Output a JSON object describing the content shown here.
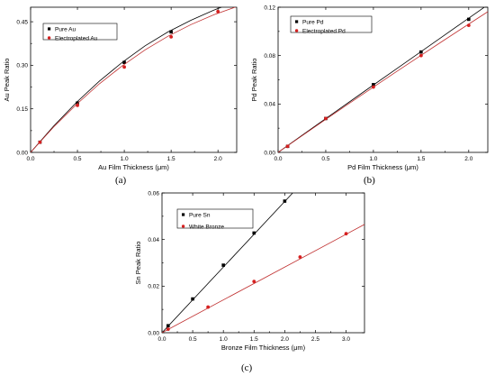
{
  "chart_data": [
    {
      "type": "scatter",
      "panel_label": "(a)",
      "xlabel": "Au Film Thickness (μm)",
      "ylabel": "Au Peak Ratio",
      "xlim": [
        0,
        2.2
      ],
      "ylim": [
        0,
        0.5
      ],
      "xticks": [
        0.0,
        0.5,
        1.0,
        1.5,
        2.0
      ],
      "xtick_labels": [
        "0.0",
        "0.5",
        "1.0",
        "1.5",
        "2.0"
      ],
      "yticks": [
        0.0,
        0.15,
        0.3,
        0.45
      ],
      "ytick_labels": [
        "0.00",
        "0.15",
        "0.30",
        "0.45"
      ],
      "legend_position": "top-left",
      "series": [
        {
          "name": "Pure Au",
          "color": "#000000",
          "x": [
            0.1,
            0.5,
            1.0,
            1.5,
            2.0
          ],
          "y": [
            0.035,
            0.17,
            0.31,
            0.415,
            0.505
          ],
          "fit_y": [
            0.0,
            0.09,
            0.172,
            0.245,
            0.31,
            0.367,
            0.415,
            0.455,
            0.49,
            0.52
          ]
        },
        {
          "name": "Electroplated Au",
          "color": "#d62020",
          "x": [
            0.1,
            0.5,
            1.0,
            1.5,
            2.0
          ],
          "y": [
            0.035,
            0.162,
            0.294,
            0.398,
            0.485
          ],
          "fit_y": [
            0.0,
            0.087,
            0.165,
            0.236,
            0.298,
            0.353,
            0.4,
            0.44,
            0.474,
            0.502
          ]
        }
      ]
    },
    {
      "type": "scatter",
      "panel_label": "(b)",
      "xlabel": "Pd Film Thickness (μm)",
      "ylabel": "Pd Peak Ratio",
      "xlim": [
        0,
        2.2
      ],
      "ylim": [
        0,
        0.12
      ],
      "xticks": [
        0.0,
        0.5,
        1.0,
        1.5,
        2.0
      ],
      "xtick_labels": [
        "0.0",
        "0.5",
        "1.0",
        "1.5",
        "2.0"
      ],
      "yticks": [
        0.0,
        0.04,
        0.08,
        0.12
      ],
      "ytick_labels": [
        "0.00",
        "0.04",
        "0.08",
        "0.12"
      ],
      "legend_position": "top-left",
      "series": [
        {
          "name": "Pure Pd",
          "color": "#000000",
          "x": [
            0.1,
            0.5,
            1.0,
            1.5,
            2.0
          ],
          "y": [
            0.005,
            0.028,
            0.056,
            0.083,
            0.11
          ],
          "fit_y": [
            0.0,
            0.0137,
            0.0273,
            0.0409,
            0.0545,
            0.068,
            0.0815,
            0.095,
            0.1085,
            0.122
          ]
        },
        {
          "name": "Electroplated Pd",
          "color": "#d62020",
          "x": [
            0.1,
            0.5,
            1.0,
            1.5,
            2.0
          ],
          "y": [
            0.005,
            0.028,
            0.054,
            0.08,
            0.105
          ],
          "fit_y": [
            0.0,
            0.0134,
            0.0267,
            0.0398,
            0.0528,
            0.0657,
            0.0785,
            0.0912,
            0.1038,
            0.1163
          ]
        }
      ]
    },
    {
      "type": "scatter",
      "panel_label": "(c)",
      "xlabel": "Bronze Film Thickness (μm)",
      "ylabel": "Sn Peak Ratio",
      "xlim": [
        0,
        3.3
      ],
      "ylim": [
        0,
        0.06
      ],
      "xticks": [
        0.0,
        0.5,
        1.0,
        1.5,
        2.0,
        2.5,
        3.0
      ],
      "xtick_labels": [
        "0.0",
        "0.5",
        "1.0",
        "1.5",
        "2.0",
        "2.5",
        "3.0"
      ],
      "yticks": [
        0.0,
        0.02,
        0.04,
        0.06
      ],
      "ytick_labels": [
        "0.00",
        "0.02",
        "0.04",
        "0.06"
      ],
      "legend_position": "top-left",
      "series": [
        {
          "name": "Pure Sn",
          "color": "#000000",
          "x": [
            0.1,
            0.5,
            1.0,
            1.5,
            2.0
          ],
          "y": [
            0.003,
            0.0145,
            0.029,
            0.0428,
            0.0565
          ],
          "fit_x": [
            0.0,
            2.13
          ],
          "fit_y": [
            0.0,
            0.06
          ]
        },
        {
          "name": "White Bronze",
          "color": "#d62020",
          "x": [
            0.1,
            0.75,
            1.5,
            2.25,
            3.0
          ],
          "y": [
            0.0015,
            0.011,
            0.022,
            0.0325,
            0.0425
          ],
          "fit_x": [
            0.0,
            3.3
          ],
          "fit_y": [
            0.0,
            0.0465
          ]
        }
      ]
    }
  ]
}
